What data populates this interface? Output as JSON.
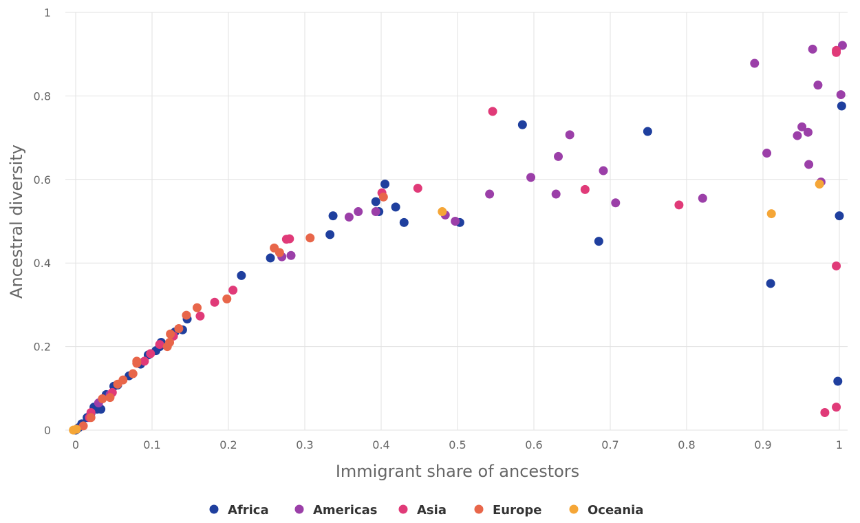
{
  "chart_data": {
    "type": "scatter",
    "title": "",
    "xlabel": "Immigrant share of ancestors",
    "ylabel": "Ancestral diversity",
    "xlim": [
      0,
      1
    ],
    "ylim": [
      0,
      1
    ],
    "x_ticks": [
      0,
      0.1,
      0.2,
      0.3,
      0.4,
      0.5,
      0.6,
      0.7,
      0.8,
      0.9,
      1
    ],
    "y_ticks": [
      0,
      0.2,
      0.4,
      0.6,
      0.8,
      1
    ],
    "x_tick_labels": [
      "0",
      "0.1",
      "0.2",
      "0.3",
      "0.4",
      "0.5",
      "0.6",
      "0.7",
      "0.8",
      "0.9",
      "1"
    ],
    "y_tick_labels": [
      "0",
      "0.2",
      "0.4",
      "0.6",
      "0.8",
      "1"
    ],
    "grid": true,
    "legend_position": "bottom",
    "series": [
      {
        "name": "Africa",
        "color": "#1f3f9e",
        "points": [
          [
            0,
            0
          ],
          [
            0.002,
            0.003
          ],
          [
            0.004,
            0.006
          ],
          [
            0.008,
            0.015
          ],
          [
            0.015,
            0.03
          ],
          [
            0.02,
            0.04
          ],
          [
            0.024,
            0.055
          ],
          [
            0.028,
            0.05
          ],
          [
            0.033,
            0.05
          ],
          [
            0.04,
            0.085
          ],
          [
            0.05,
            0.105
          ],
          [
            0.055,
            0.108
          ],
          [
            0.07,
            0.13
          ],
          [
            0.085,
            0.158
          ],
          [
            0.095,
            0.18
          ],
          [
            0.105,
            0.19
          ],
          [
            0.11,
            0.2
          ],
          [
            0.112,
            0.21
          ],
          [
            0.125,
            0.23
          ],
          [
            0.13,
            0.235
          ],
          [
            0.14,
            0.24
          ],
          [
            0.146,
            0.266
          ],
          [
            0.217,
            0.37
          ],
          [
            0.255,
            0.412
          ],
          [
            0.333,
            0.468
          ],
          [
            0.337,
            0.513
          ],
          [
            0.393,
            0.547
          ],
          [
            0.397,
            0.523
          ],
          [
            0.405,
            0.589
          ],
          [
            0.419,
            0.534
          ],
          [
            0.43,
            0.497
          ],
          [
            0.503,
            0.497
          ],
          [
            0.585,
            0.731
          ],
          [
            0.685,
            0.452
          ],
          [
            0.749,
            0.715
          ],
          [
            0.91,
            0.351
          ],
          [
            0.998,
            0.117
          ],
          [
            1.0,
            0.513
          ],
          [
            1.003,
            0.776
          ]
        ]
      },
      {
        "name": "Americas",
        "color": "#9b3fa8",
        "points": [
          [
            0.03,
            0.065
          ],
          [
            0.045,
            0.085
          ],
          [
            0.27,
            0.415
          ],
          [
            0.282,
            0.418
          ],
          [
            0.358,
            0.51
          ],
          [
            0.37,
            0.523
          ],
          [
            0.393,
            0.523
          ],
          [
            0.484,
            0.515
          ],
          [
            0.497,
            0.5
          ],
          [
            0.542,
            0.565
          ],
          [
            0.596,
            0.605
          ],
          [
            0.629,
            0.565
          ],
          [
            0.632,
            0.655
          ],
          [
            0.647,
            0.707
          ],
          [
            0.691,
            0.621
          ],
          [
            0.707,
            0.544
          ],
          [
            0.821,
            0.555
          ],
          [
            0.889,
            0.878
          ],
          [
            0.905,
            0.663
          ],
          [
            0.945,
            0.705
          ],
          [
            0.951,
            0.726
          ],
          [
            0.959,
            0.713
          ],
          [
            0.96,
            0.636
          ],
          [
            0.965,
            0.912
          ],
          [
            0.972,
            0.826
          ],
          [
            0.976,
            0.594
          ],
          [
            1.002,
            0.803
          ],
          [
            1.004,
            0.921
          ]
        ]
      },
      {
        "name": "Asia",
        "color": "#e03a78",
        "points": [
          [
            0.018,
            0.03
          ],
          [
            0.02,
            0.042
          ],
          [
            0.048,
            0.09
          ],
          [
            0.09,
            0.165
          ],
          [
            0.098,
            0.183
          ],
          [
            0.11,
            0.205
          ],
          [
            0.128,
            0.225
          ],
          [
            0.163,
            0.273
          ],
          [
            0.182,
            0.306
          ],
          [
            0.206,
            0.335
          ],
          [
            0.276,
            0.457
          ],
          [
            0.28,
            0.458
          ],
          [
            0.401,
            0.568
          ],
          [
            0.448,
            0.579
          ],
          [
            0.546,
            0.763
          ],
          [
            0.667,
            0.576
          ],
          [
            0.79,
            0.539
          ],
          [
            0.981,
            0.042
          ],
          [
            0.996,
            0.055
          ],
          [
            0.996,
            0.393
          ],
          [
            0.996,
            0.904
          ],
          [
            0.996,
            0.909
          ]
        ]
      },
      {
        "name": "Europe",
        "color": "#e8664a",
        "points": [
          [
            0.01,
            0.01
          ],
          [
            0.02,
            0.03
          ],
          [
            0.035,
            0.075
          ],
          [
            0.045,
            0.078
          ],
          [
            0.055,
            0.11
          ],
          [
            0.062,
            0.12
          ],
          [
            0.075,
            0.135
          ],
          [
            0.08,
            0.16
          ],
          [
            0.08,
            0.165
          ],
          [
            0.12,
            0.2
          ],
          [
            0.123,
            0.21
          ],
          [
            0.124,
            0.23
          ],
          [
            0.135,
            0.243
          ],
          [
            0.145,
            0.275
          ],
          [
            0.159,
            0.293
          ],
          [
            0.198,
            0.314
          ],
          [
            0.26,
            0.436
          ],
          [
            0.267,
            0.425
          ],
          [
            0.307,
            0.46
          ],
          [
            0.403,
            0.558
          ]
        ]
      },
      {
        "name": "Oceania",
        "color": "#f5a637",
        "points": [
          [
            -0.003,
            0.0
          ],
          [
            0.001,
            0.002
          ],
          [
            0.48,
            0.523
          ],
          [
            0.911,
            0.518
          ],
          [
            0.974,
            0.589
          ]
        ]
      }
    ]
  }
}
